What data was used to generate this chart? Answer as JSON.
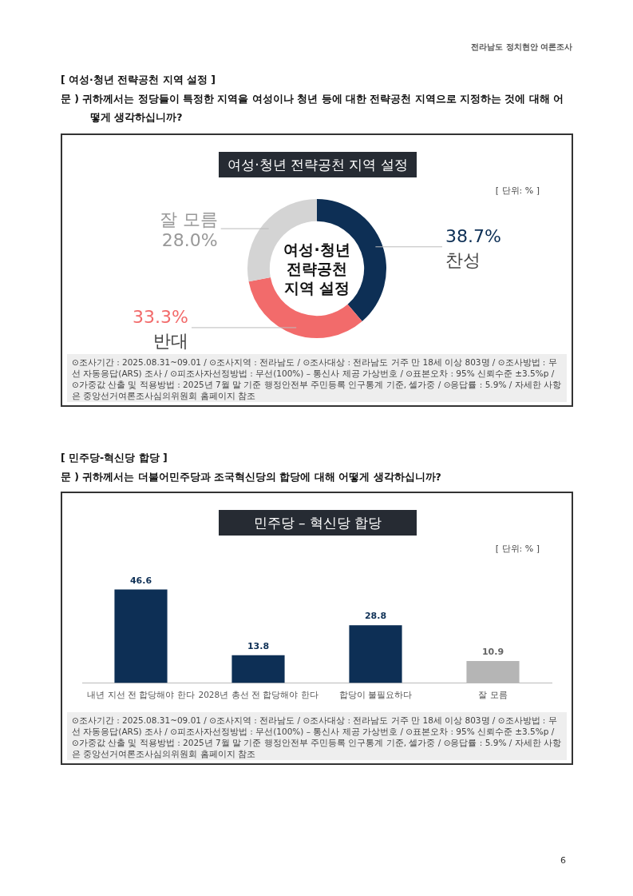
{
  "chart_data": [
    {
      "type": "donut",
      "title": "여성·청년 전략공천 지역 설정",
      "categories": [
        "찬성",
        "반대",
        "잘 모름"
      ],
      "values": [
        38.7,
        33.3,
        28.0
      ],
      "colors": [
        "#0d2f55",
        "#f26b6b",
        "#d4d4d4"
      ],
      "value_labels": [
        "38.7%",
        "33.3%",
        "28.0%"
      ],
      "legend": false,
      "annotations": [
        "전라남도 정치현안 여론조사",
        "[ 여성·청년 전략공천 지역 설정 ]",
        "문 )  귀하께서는 정당들이 특정한 지역을 여성이나 청년 등에 대한 전략공천 지역으로 지정하는 것에 대해 어떻게 생각하십니까?",
        "[ 단위: % ]",
        "여성·청년 전략공천 지역 설정",
        "⊙조사기간 : 2025.08.31~09.01 / ⊙조사지역 : 전라남도 / ⊙조사대상 : 전라남도 거주 만 18세 이상 803명 / ⊙조사방법 : 무선 자동응답(ARS) 조사 / ⊙피조사자선정방법 : 무선(100%) – 통신사 제공 가상번호 / ⊙표본오차 : 95% 신뢰수준 ±3.5%p / ⊙가중값 산출 및 적용방법 : 2025년 7월 말 기준 행정안전부 주민등록 인구통계 기준, 셀가중 / ⊙응답률 : 5.9% / 자세한 사항은 중앙선거여론조사심의위원회 홈페이지 참조"
      ]
    },
    {
      "type": "bar",
      "title": "민주당 – 혁신당 합당",
      "categories": [
        "내년 지선 전 합당해야 한다",
        "2028년 총선 전 합당해야 한다",
        "합당이 불필요하다",
        "잘 모름"
      ],
      "values": [
        46.6,
        13.8,
        28.8,
        10.9
      ],
      "colors": [
        "#0d2f55",
        "#0d2f55",
        "#0d2f55",
        "#b5b5b5"
      ],
      "data_labels": true,
      "legend": false,
      "grid": false,
      "annotations": [
        "[ 민주당-혁신당 합당 ]",
        "문 )  귀하께서는 더불어민주당과 조국혁신당의 합당에 대해 어떻게 생각하십니까?",
        "[ 단위: % ]",
        "⊙조사기간 : 2025.08.31~09.01 / ⊙조사지역 : 전라남도 / ⊙조사대상 : 전라남도 거주 만 18세 이상 803명 / ⊙조사방법 : 무선 자동응답(ARS) 조사 / ⊙피조사자선정방법 : 무선(100%) – 통신사 제공 가상번호 / ⊙표본오차 : 95% 신뢰수준 ±3.5%p / ⊙가중값 산출 및 적용방법 : 2025년 7월 말 기준 행정안전부 주민등록 인구통계 기준, 셀가중 / ⊙응답률 : 5.9% / 자세한 사항은 중앙선거여론조사심의위원회 홈페이지 참조",
        "6"
      ]
    }
  ]
}
